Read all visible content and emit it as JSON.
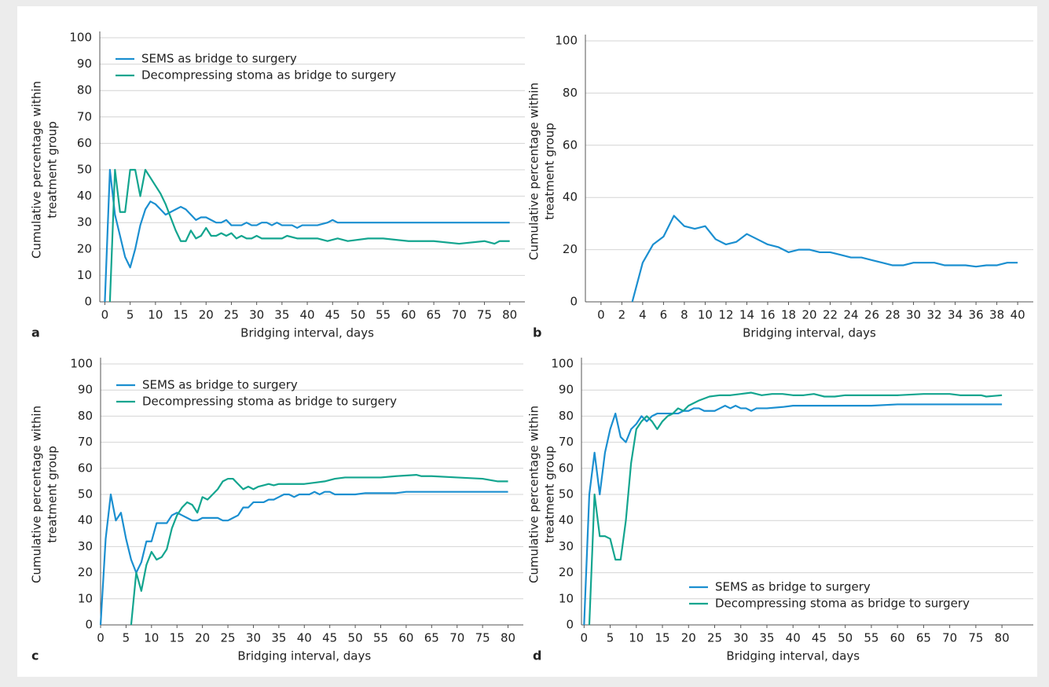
{
  "charts": [
    {
      "chart_data": {
        "type": "line",
        "panel_label": "a",
        "xlabel": "Bridging interval, days",
        "ylabel": [
          "Cumulative percentage within",
          "treatment group"
        ],
        "xlim": [
          -1,
          83
        ],
        "ylim": [
          0,
          100
        ],
        "xticks": [
          0,
          5,
          10,
          15,
          20,
          25,
          30,
          35,
          40,
          45,
          50,
          55,
          60,
          65,
          70,
          75,
          80
        ],
        "yticks": [
          0,
          10,
          20,
          30,
          40,
          50,
          60,
          70,
          80,
          90,
          100
        ],
        "grid": true,
        "legend": "upper left",
        "series": [
          {
            "name": "SEMS as bridge to surgery",
            "color": "#1b8fd0",
            "x": [
              0,
              1,
              2,
              3,
              4,
              5,
              6,
              7,
              8,
              9,
              10,
              11,
              12,
              13,
              14,
              15,
              16,
              17,
              18,
              19,
              20,
              21,
              22,
              23,
              24,
              25,
              26,
              27,
              28,
              29,
              30,
              31,
              32,
              33,
              34,
              35,
              36,
              37,
              38,
              39,
              40,
              42,
              44,
              45,
              46,
              50,
              80
            ],
            "values": [
              0,
              50,
              33,
              25,
              17,
              13,
              20,
              29,
              35,
              38,
              37,
              35,
              33,
              34,
              35,
              36,
              35,
              33,
              31,
              32,
              32,
              31,
              30,
              30,
              31,
              29,
              29,
              29,
              30,
              29,
              29,
              30,
              30,
              29,
              30,
              29,
              29,
              29,
              28,
              29,
              29,
              29,
              30,
              31,
              30,
              30,
              30
            ]
          },
          {
            "name": "Decompressing stoma as bridge to surgery",
            "color": "#13a58f",
            "x": [
              1,
              2,
              3,
              4,
              5,
              6,
              7,
              8,
              9,
              10,
              11,
              12,
              13,
              14,
              15,
              16,
              17,
              18,
              19,
              20,
              21,
              22,
              23,
              24,
              25,
              26,
              27,
              28,
              29,
              30,
              31,
              33,
              35,
              36,
              38,
              40,
              42,
              44,
              46,
              48,
              52,
              55,
              60,
              65,
              70,
              75,
              77,
              78,
              80
            ],
            "values": [
              0,
              50,
              34,
              34,
              50,
              50,
              40,
              50,
              47,
              44,
              41,
              37,
              32,
              27,
              23,
              23,
              27,
              24,
              25,
              28,
              25,
              25,
              26,
              25,
              26,
              24,
              25,
              24,
              24,
              25,
              24,
              24,
              24,
              25,
              24,
              24,
              24,
              23,
              24,
              23,
              24,
              24,
              23,
              23,
              22,
              23,
              22,
              23,
              23
            ]
          }
        ]
      }
    },
    {
      "chart_data": {
        "type": "line",
        "panel_label": "b",
        "xlabel": "Bridging interval, days",
        "ylabel": [
          "Cumulative percentage within",
          "treatment group"
        ],
        "xlim": [
          -1.5,
          41.5
        ],
        "ylim": [
          0,
          100
        ],
        "xticks": [
          0,
          2,
          4,
          6,
          8,
          10,
          12,
          14,
          16,
          18,
          20,
          22,
          24,
          26,
          28,
          30,
          32,
          34,
          36,
          38,
          40
        ],
        "yticks": [
          0,
          20,
          40,
          60,
          80,
          100
        ],
        "grid": true,
        "series": [
          {
            "color": "#1b8fd0",
            "x": [
              3,
              4,
              5,
              6,
              7,
              8,
              9,
              10,
              11,
              12,
              13,
              14,
              15,
              16,
              17,
              18,
              19,
              20,
              21,
              22,
              23,
              24,
              25,
              26,
              27,
              28,
              29,
              30,
              31,
              32,
              33,
              34,
              35,
              36,
              37,
              38,
              39,
              40
            ],
            "values": [
              0,
              15,
              22,
              25,
              33,
              29,
              28,
              29,
              24,
              22,
              23,
              26,
              24,
              22,
              21,
              19,
              20,
              20,
              19,
              19,
              18,
              17,
              17,
              16,
              15,
              14,
              14,
              15,
              15,
              15,
              14,
              14,
              14,
              13.5,
              14,
              14,
              15,
              15
            ]
          }
        ]
      }
    },
    {
      "chart_data": {
        "type": "line",
        "panel_label": "c",
        "xlabel": "Bridging interval, days",
        "ylabel": [
          "Cumulative percentage within",
          "treatment group"
        ],
        "xlim": [
          0,
          83
        ],
        "ylim": [
          0,
          100
        ],
        "xticks": [
          0,
          5,
          10,
          15,
          20,
          25,
          30,
          35,
          40,
          45,
          50,
          55,
          60,
          65,
          70,
          75,
          80
        ],
        "yticks": [
          0,
          10,
          20,
          30,
          40,
          50,
          60,
          70,
          80,
          90,
          100
        ],
        "grid": true,
        "legend": "upper left",
        "series": [
          {
            "name": "SEMS as bridge to surgery",
            "color": "#1b8fd0",
            "x": [
              0,
              1,
              2,
              3,
              4,
              5,
              6,
              7,
              8,
              9,
              10,
              11,
              12,
              13,
              14,
              15,
              16,
              17,
              18,
              19,
              20,
              21,
              22,
              23,
              24,
              25,
              26,
              27,
              28,
              29,
              30,
              32,
              33,
              34,
              35,
              36,
              37,
              38,
              39,
              40,
              41,
              42,
              43,
              44,
              45,
              46,
              50,
              52,
              58,
              60,
              80
            ],
            "values": [
              0,
              33,
              50,
              40,
              43,
              33,
              25,
              20,
              24,
              32,
              32,
              39,
              39,
              39,
              42,
              43,
              42,
              41,
              40,
              40,
              41,
              41,
              41,
              41,
              40,
              40,
              41,
              42,
              45,
              45,
              47,
              47,
              48,
              48,
              49,
              50,
              50,
              49,
              50,
              50,
              50,
              51,
              50,
              51,
              51,
              50,
              50,
              50.5,
              50.5,
              51,
              51
            ]
          },
          {
            "name": "Decompressing stoma as bridge to surgery",
            "color": "#13a58f",
            "x": [
              6,
              7,
              8,
              9,
              10,
              11,
              12,
              13,
              14,
              15,
              16,
              17,
              18,
              19,
              20,
              21,
              22,
              23,
              24,
              25,
              26,
              27,
              28,
              29,
              30,
              31,
              32,
              33,
              34,
              35,
              36,
              37,
              38,
              40,
              42,
              44,
              46,
              48,
              55,
              58,
              62,
              63,
              65,
              70,
              75,
              78,
              80
            ],
            "values": [
              0,
              20,
              13,
              23,
              28,
              25,
              26,
              29,
              37,
              42,
              45,
              47,
              46,
              43,
              49,
              48,
              50,
              52,
              55,
              56,
              56,
              54,
              52,
              53,
              52,
              53,
              53.5,
              54,
              53.5,
              54,
              54,
              54,
              54,
              54,
              54.5,
              55,
              56,
              56.5,
              56.5,
              57,
              57.5,
              57,
              57,
              56.5,
              56,
              55,
              55
            ]
          }
        ]
      }
    },
    {
      "chart_data": {
        "type": "line",
        "panel_label": "d",
        "xlabel": "Bridging interval, days",
        "ylabel": [
          "Cumulative percentage within",
          "treatment group"
        ],
        "xlim": [
          -0.5,
          86
        ],
        "ylim": [
          0,
          100
        ],
        "xticks": [
          0,
          5,
          10,
          15,
          20,
          25,
          30,
          35,
          40,
          45,
          50,
          55,
          60,
          65,
          70,
          75,
          80
        ],
        "yticks": [
          0,
          10,
          20,
          30,
          40,
          50,
          60,
          70,
          80,
          90,
          100
        ],
        "grid": true,
        "legend": "lower right",
        "series": [
          {
            "name": "SEMS as bridge to surgery",
            "color": "#1b8fd0",
            "x": [
              0,
              1,
              2,
              3,
              4,
              5,
              6,
              7,
              8,
              9,
              10,
              11,
              12,
              13,
              14,
              15,
              16,
              17,
              18,
              19,
              20,
              21,
              22,
              23,
              24,
              25,
              26,
              27,
              28,
              29,
              30,
              31,
              32,
              33,
              35,
              38,
              40,
              45,
              50,
              55,
              60,
              80
            ],
            "values": [
              0,
              50,
              66,
              50,
              66,
              75,
              81,
              72,
              70,
              75,
              77,
              80,
              78,
              80,
              81,
              81,
              81,
              81,
              81,
              82,
              82,
              83,
              83,
              82,
              82,
              82,
              83,
              84,
              83,
              84,
              83,
              83,
              82,
              83,
              83,
              83.5,
              84,
              84,
              84,
              84,
              84.5,
              84.5
            ]
          },
          {
            "name": "Decompressing stoma as bridge to surgery",
            "color": "#13a58f",
            "x": [
              1,
              2,
              3,
              4,
              5,
              6,
              7,
              8,
              9,
              10,
              11,
              12,
              13,
              14,
              15,
              16,
              17,
              18,
              19,
              20,
              22,
              24,
              26,
              28,
              30,
              32,
              34,
              36,
              38,
              40,
              42,
              44,
              46,
              48,
              50,
              55,
              60,
              65,
              70,
              72,
              76,
              77,
              80
            ],
            "values": [
              0,
              50,
              34,
              34,
              33,
              25,
              25,
              40,
              62,
              75,
              78,
              80,
              78,
              75,
              78,
              80,
              81,
              83,
              82,
              84,
              86,
              87.5,
              88,
              88,
              88.5,
              89,
              88,
              88.5,
              88.5,
              88,
              88,
              88.5,
              87.5,
              87.5,
              88,
              88,
              88,
              88.5,
              88.5,
              88,
              88,
              87.5,
              88
            ]
          }
        ]
      }
    }
  ]
}
